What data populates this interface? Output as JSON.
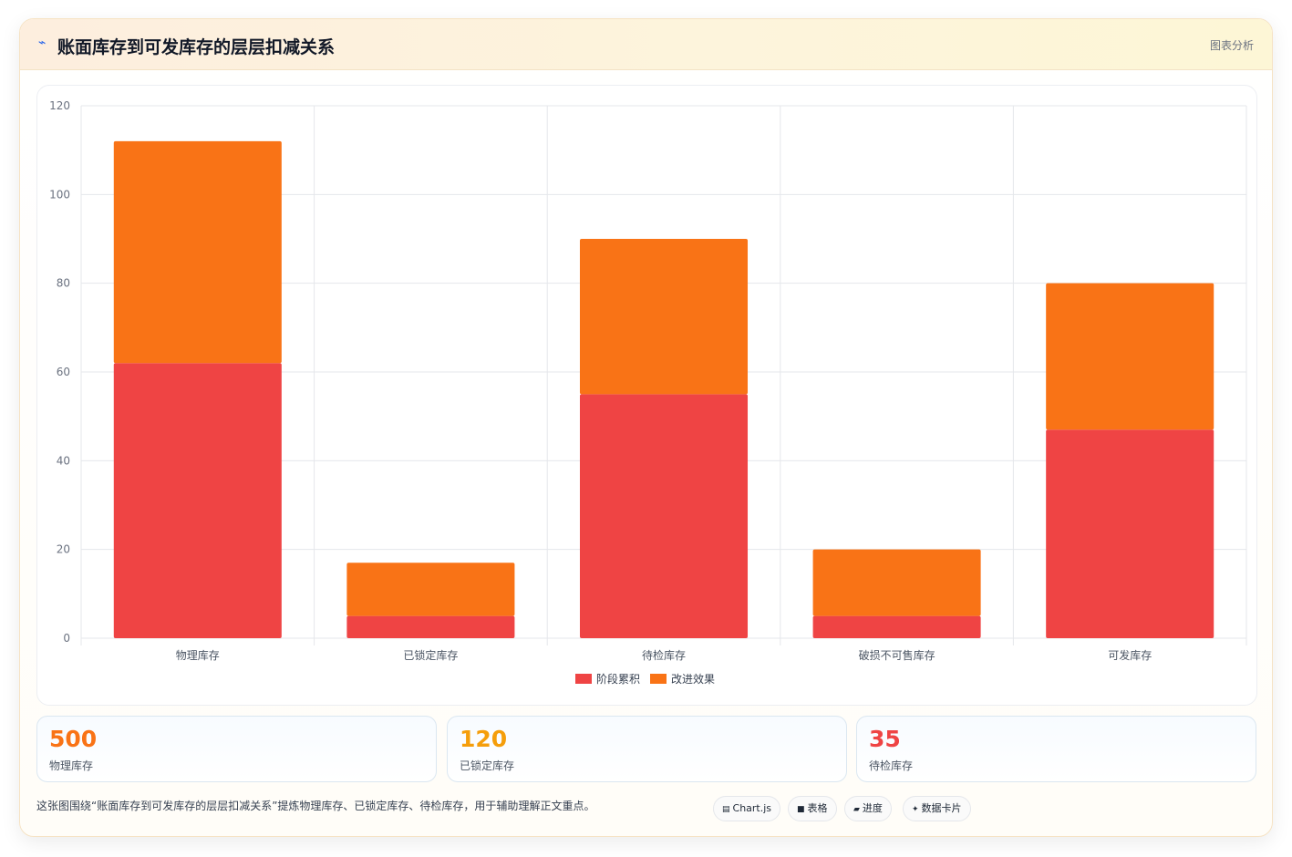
{
  "header": {
    "icon": "chart-icon",
    "title": "账面库存到可发库存的层层扣减关系",
    "tag": "图表分析"
  },
  "chart_data": {
    "type": "bar",
    "stacked": true,
    "categories": [
      "物理库存",
      "已锁定库存",
      "待检库存",
      "破损不可售库存",
      "可发库存"
    ],
    "series": [
      {
        "name": "阶段累积",
        "color": "#ef4444",
        "values": [
          62,
          5,
          55,
          5,
          47
        ]
      },
      {
        "name": "改进效果",
        "color": "#f97316",
        "values": [
          50,
          12,
          35,
          15,
          33
        ]
      }
    ],
    "ylim": [
      0,
      120
    ],
    "yticks": [
      0,
      20,
      40,
      60,
      80,
      100,
      120
    ],
    "grid": true,
    "legend": "bottom"
  },
  "stats": [
    {
      "value": "500",
      "label": "物理库存",
      "color": "#f97316"
    },
    {
      "value": "120",
      "label": "已锁定库存",
      "color": "#f59e0b"
    },
    {
      "value": "35",
      "label": "待检库存",
      "color": "#ef4444"
    }
  ],
  "footer": {
    "note": "这张图围绕“账面库存到可发库存的层层扣减关系”提炼物理库存、已锁定库存、待检库存，用于辅助理解正文重点。",
    "chips": [
      {
        "icon": "▤",
        "icon_name": "chart-icon",
        "label": "Chart.js"
      },
      {
        "icon": "■",
        "icon_name": "table-icon",
        "label": "表格"
      },
      {
        "icon": "▰",
        "icon_name": "progress-icon",
        "label": "进度"
      },
      {
        "icon": "✦",
        "icon_name": "card-icon",
        "label": "数据卡片"
      }
    ]
  }
}
